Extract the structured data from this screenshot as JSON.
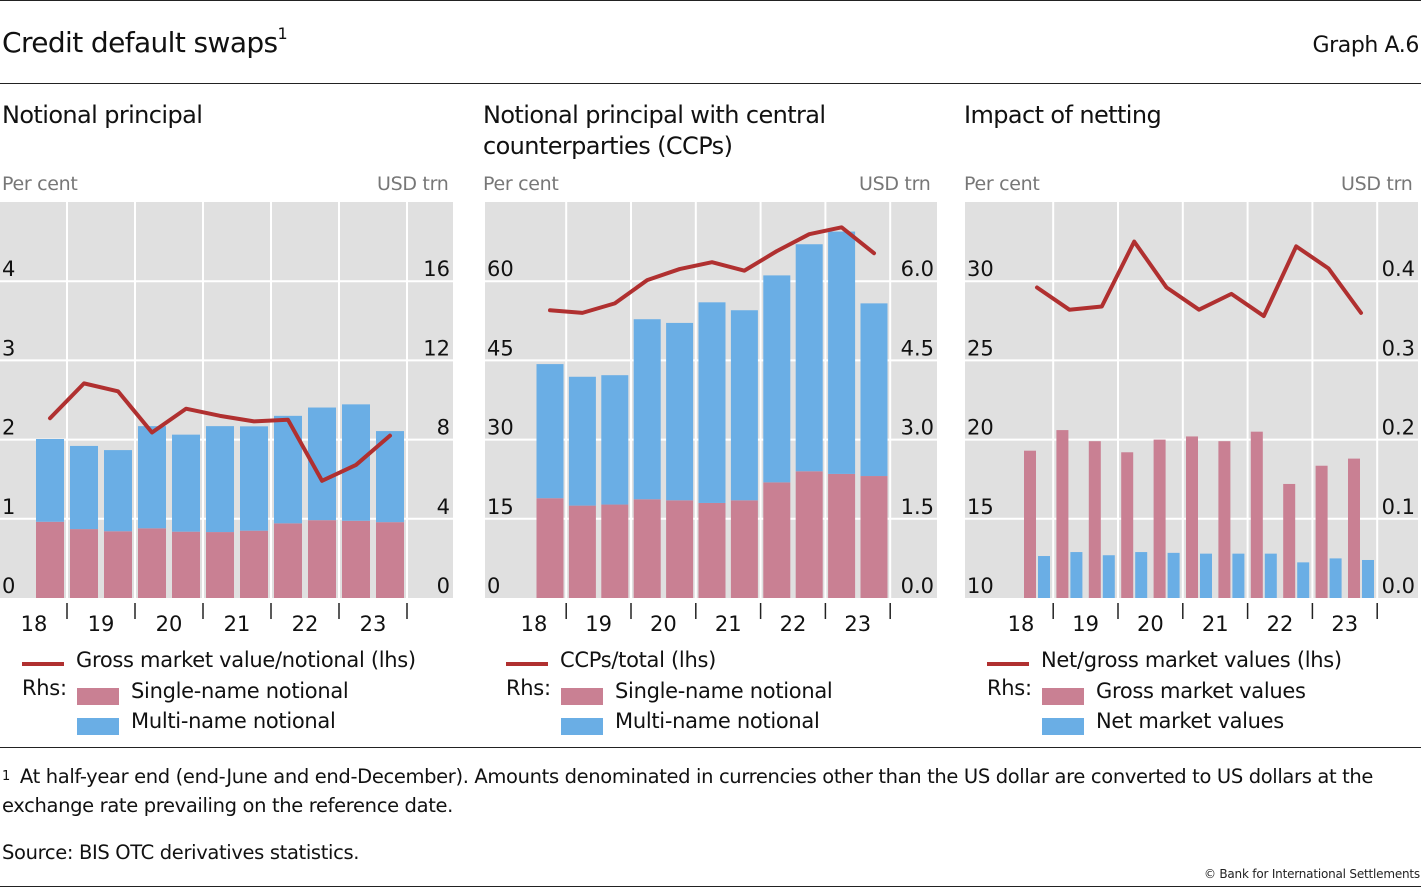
{
  "header": {
    "title": "Credit default swaps",
    "title_footnote_mark": "1",
    "graph_id": "Graph A.6"
  },
  "colors": {
    "line": "#b03030",
    "single_name": "#c98093",
    "multi_name": "#6aaee5",
    "plot_bg": "#e0e0e0",
    "grid": "#ffffff"
  },
  "chart_data": [
    {
      "type": "bar",
      "stacked": true,
      "title": "Notional principal",
      "ylabel_left": "Per cent",
      "ylabel_right": "USD trn",
      "x_year_labels": [
        "18",
        "19",
        "20",
        "21",
        "22",
        "23"
      ],
      "periods": [
        "H2 2018",
        "H1 2019",
        "H2 2019",
        "H1 2020",
        "H2 2020",
        "H1 2021",
        "H2 2021",
        "H1 2022",
        "H2 2022",
        "H1 2023",
        "H2 2023"
      ],
      "ylim_left": [
        0,
        5
      ],
      "yticks_left": [
        "0",
        "1",
        "2",
        "3",
        "4"
      ],
      "ylim_right": [
        0,
        20
      ],
      "yticks_right": [
        "0",
        "4",
        "8",
        "12",
        "16"
      ],
      "grid": true,
      "series": [
        {
          "name": "Single-name notional",
          "axis": "right",
          "kind": "bar",
          "values": [
            3.85,
            3.48,
            3.37,
            3.52,
            3.35,
            3.33,
            3.4,
            3.77,
            3.93,
            3.9,
            3.83
          ]
        },
        {
          "name": "Multi-name notional",
          "axis": "right",
          "kind": "bar",
          "values": [
            4.18,
            4.2,
            4.1,
            5.16,
            4.9,
            5.35,
            5.27,
            5.43,
            5.69,
            5.88,
            4.6
          ]
        },
        {
          "name": "Gross market value/notional (lhs)",
          "axis": "left",
          "kind": "line",
          "values": [
            2.27,
            2.71,
            2.61,
            2.09,
            2.39,
            2.3,
            2.23,
            2.25,
            1.48,
            1.68,
            2.05
          ]
        }
      ],
      "legend": {
        "line_label": "Gross market value/notional (lhs)",
        "rhs_prefix": "Rhs:",
        "bar_labels": [
          "Single-name notional",
          "Multi-name notional"
        ]
      }
    },
    {
      "type": "bar",
      "stacked": true,
      "title": "Notional principal with central counterparties (CCPs)",
      "ylabel_left": "Per cent",
      "ylabel_right": "USD trn",
      "x_year_labels": [
        "18",
        "19",
        "20",
        "21",
        "22",
        "23"
      ],
      "periods": [
        "H2 2018",
        "H1 2019",
        "H2 2019",
        "H1 2020",
        "H2 2020",
        "H1 2021",
        "H2 2021",
        "H1 2022",
        "H2 2022",
        "H1 2023",
        "H2 2023"
      ],
      "ylim_left": [
        0,
        75
      ],
      "yticks_left": [
        "0",
        "15",
        "30",
        "45",
        "60"
      ],
      "ylim_right": [
        0,
        7.5
      ],
      "yticks_right": [
        "0.0",
        "1.5",
        "3.0",
        "4.5",
        "6.0"
      ],
      "grid": true,
      "series": [
        {
          "name": "Single-name notional",
          "axis": "right",
          "kind": "bar",
          "values": [
            1.89,
            1.75,
            1.77,
            1.87,
            1.85,
            1.8,
            1.85,
            2.19,
            2.4,
            2.35,
            2.31
          ]
        },
        {
          "name": "Multi-name notional",
          "axis": "right",
          "kind": "bar",
          "values": [
            2.54,
            2.44,
            2.45,
            3.41,
            3.36,
            3.8,
            3.6,
            3.92,
            4.3,
            4.59,
            3.27
          ]
        },
        {
          "name": "CCPs/total (lhs)",
          "axis": "left",
          "kind": "line",
          "values": [
            54.5,
            54.0,
            55.8,
            60.2,
            62.3,
            63.6,
            62.0,
            65.7,
            68.9,
            70.2,
            65.3
          ]
        }
      ],
      "legend": {
        "line_label": "CCPs/total (lhs)",
        "rhs_prefix": "Rhs:",
        "bar_labels": [
          "Single-name notional",
          "Multi-name notional"
        ]
      }
    },
    {
      "type": "bar",
      "stacked": false,
      "title": "Impact of netting",
      "ylabel_left": "Per cent",
      "ylabel_right": "USD trn",
      "x_year_labels": [
        "18",
        "19",
        "20",
        "21",
        "22",
        "23"
      ],
      "periods": [
        "H2 2018",
        "H1 2019",
        "H2 2019",
        "H1 2020",
        "H2 2020",
        "H1 2021",
        "H2 2021",
        "H1 2022",
        "H2 2022",
        "H1 2023",
        "H2 2023"
      ],
      "ylim_left": [
        10,
        35
      ],
      "yticks_left": [
        "10",
        "15",
        "20",
        "25",
        "30"
      ],
      "ylim_right": [
        0,
        0.5
      ],
      "yticks_right": [
        "0.0",
        "0.1",
        "0.2",
        "0.3",
        "0.4"
      ],
      "grid": true,
      "series": [
        {
          "name": "Gross market values",
          "axis": "right",
          "kind": "bar",
          "values": [
            0.186,
            0.212,
            0.198,
            0.184,
            0.2,
            0.204,
            0.198,
            0.21,
            0.144,
            0.167,
            0.176
          ]
        },
        {
          "name": "Net market values",
          "axis": "right",
          "kind": "bar",
          "values": [
            0.053,
            0.058,
            0.054,
            0.058,
            0.057,
            0.056,
            0.056,
            0.056,
            0.045,
            0.05,
            0.048
          ]
        },
        {
          "name": "Net/gross market values (lhs)",
          "axis": "left",
          "kind": "line",
          "values": [
            29.6,
            28.2,
            28.4,
            32.5,
            29.6,
            28.2,
            29.2,
            27.8,
            32.2,
            30.8,
            28.0
          ]
        }
      ],
      "legend": {
        "line_label": "Net/gross market values (lhs)",
        "rhs_prefix": "Rhs:",
        "bar_labels": [
          "Gross market values",
          "Net market values"
        ]
      }
    }
  ],
  "footnote": {
    "mark": "1",
    "text": "At half-year end (end-June and end-December). Amounts denominated in currencies other than the US dollar are converted to US dollars at the exchange rate prevailing on the reference date."
  },
  "source": "Source: BIS OTC derivatives statistics.",
  "copyright": "© Bank for International Settlements"
}
